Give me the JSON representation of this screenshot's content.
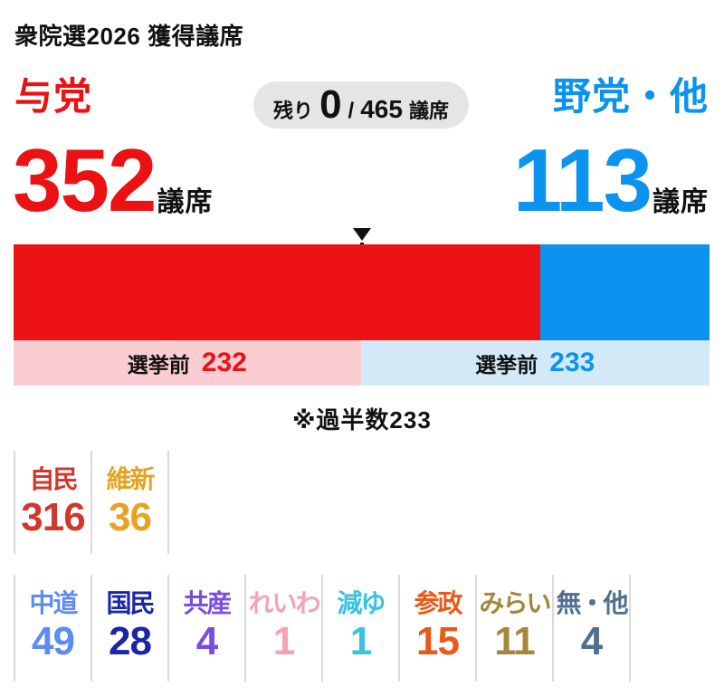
{
  "page": {
    "title": "衆院選2026 獲得議席"
  },
  "header": {
    "ruling_label": "与党",
    "opposition_label": "野党・他",
    "remaining": {
      "label": "残り",
      "value": "0",
      "separator": "/",
      "total": "465",
      "unit": "議席"
    }
  },
  "totals": {
    "ruling_value": "352",
    "ruling_unit": "議席",
    "opposition_value": "113",
    "opposition_unit": "議席"
  },
  "band": {
    "left_label": "選挙前",
    "left_value": "232",
    "right_label": "選挙前",
    "right_value": "233"
  },
  "majority_note": "※過半数233",
  "chart_data": {
    "type": "bar",
    "orientation": "horizontal-stacked",
    "title": "衆院選2026 獲得議席",
    "total_seats": 465,
    "remaining_seats": 0,
    "majority": 233,
    "majority_note": "※過半数233",
    "pre_election_label": "選挙前",
    "blocs": [
      {
        "name": "与党",
        "seats": 352,
        "pre_election": 232,
        "color": "#ec1113",
        "pre_band_color": "#facdd2"
      },
      {
        "name": "野党・他",
        "seats": 113,
        "pre_election": 233,
        "color": "#0b93ef",
        "pre_band_color": "#d3e9f8"
      }
    ],
    "parties_row1": [
      {
        "name": "自民",
        "seats": 316,
        "color": "#d1382c"
      },
      {
        "name": "維新",
        "seats": 36,
        "color": "#e5a321"
      }
    ],
    "parties_row2": [
      {
        "name": "中道",
        "seats": 49,
        "color": "#5c8bf2"
      },
      {
        "name": "国民",
        "seats": 28,
        "color": "#1b25a9"
      },
      {
        "name": "共産",
        "seats": 4,
        "color": "#7c4be4"
      },
      {
        "name": "れいわ",
        "seats": 1,
        "color": "#f5a2b5"
      },
      {
        "name": "減ゆ",
        "seats": 1,
        "color": "#38c3df"
      },
      {
        "name": "参政",
        "seats": 15,
        "color": "#e95a18"
      },
      {
        "name": "みらい",
        "seats": 11,
        "color": "#a4873c"
      },
      {
        "name": "無・他",
        "seats": 4,
        "color": "#50708f"
      }
    ]
  },
  "colors": {
    "red": "#ec1113",
    "blue": "#0b93ef",
    "pill_bg": "#e5e5e5",
    "pink_band": "#facdd2",
    "light_blue_band": "#d3e9f8",
    "separator": "#dadada",
    "text": "#111111"
  }
}
